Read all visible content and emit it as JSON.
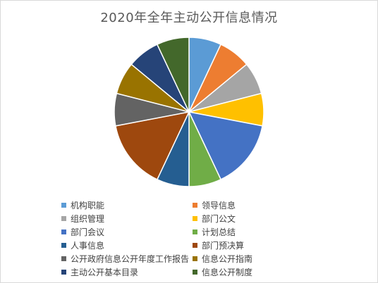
{
  "chart_data": {
    "type": "pie",
    "title": "2020年全年主动公开信息情况",
    "categories": [
      "机构职能",
      "领导信息",
      "组织管理",
      "部门公文",
      "部门会议",
      "计划总结",
      "人事信息",
      "部门预决算",
      "公开政府信息公开年度工作报告",
      "信息公开指南",
      "主动公开基本目录",
      "信息公开制度"
    ],
    "values": [
      7,
      7,
      7,
      7,
      15,
      7,
      7,
      15,
      7,
      7,
      7,
      7
    ],
    "colors": [
      "#5B9BD5",
      "#ED7D31",
      "#A5A5A5",
      "#FFC000",
      "#4472C4",
      "#70AD47",
      "#255E91",
      "#9E480E",
      "#636363",
      "#997300",
      "#264478",
      "#43682B"
    ],
    "start_angle_deg": 0,
    "direction": "clockwise",
    "legend_position": "bottom",
    "legend_columns": 2
  }
}
